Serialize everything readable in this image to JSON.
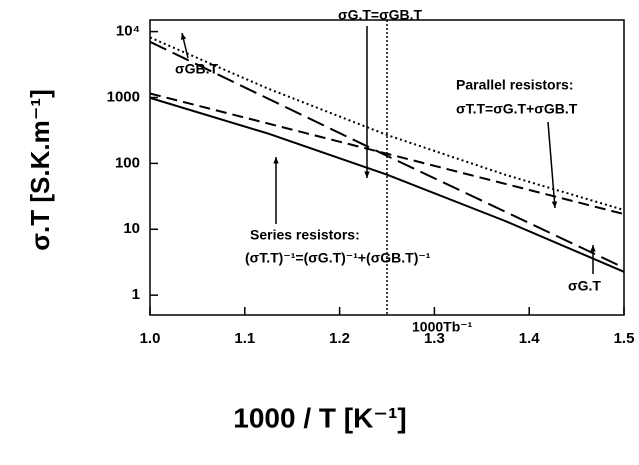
{
  "chart_data": {
    "type": "line",
    "xlabel": "1000 / T [K⁻¹]",
    "ylabel": "σ.T [S.K.m⁻¹]",
    "x": [
      1.0,
      1.125,
      1.25,
      1.375,
      1.5
    ],
    "series": [
      {
        "color": "#000000",
        "style": "solid",
        "values": [
          987,
          282,
          67.4,
          13.3,
          2.26
        ]
      },
      {
        "color": "#000000",
        "style": "longdash",
        "values": [
          7000,
          954,
          130,
          18.4,
          2.6
        ]
      },
      {
        "color": "#000000",
        "style": "dash",
        "values": [
          1150,
          401,
          140,
          48.8,
          17
        ]
      },
      {
        "color": "#000000",
        "style": "dot",
        "values": [
          8150,
          1355,
          270,
          67,
          19.6
        ]
      }
    ],
    "vline": 1.25,
    "annotations": [
      "σG.T=σGB.T",
      "Parallel resistors:",
      "σT.T=σG.T+σGB.T",
      "Series resistors:",
      "(σT.T)⁻¹=(σG.T)⁻¹+(σGB.T)⁻¹",
      "σGB.T",
      "σG.T",
      "1000Tb⁻¹"
    ],
    "xlim": [
      1.0,
      1.5
    ],
    "xticks": [
      {
        "value": 1.0,
        "label": "1.0"
      },
      1.1,
      1.2,
      1.3,
      1.4,
      1.5
    ],
    "ylim": [
      0.5,
      15000
    ],
    "yticks": [
      1,
      10,
      100,
      1000,
      {
        "value": 10000,
        "label": "10⁴"
      }
    ],
    "log_y": true
  }
}
